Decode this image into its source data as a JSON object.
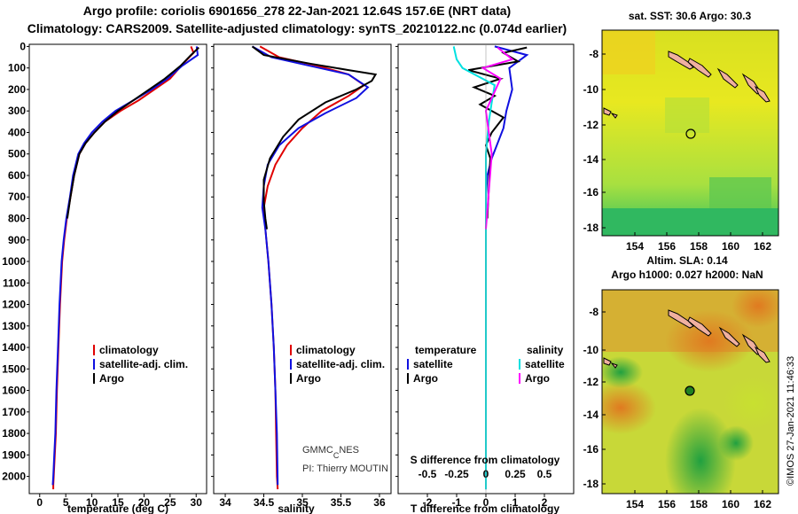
{
  "title": {
    "line1": "Argo profile: coriolis 6901656_278 22-Jan-2021 12.64S 157.6E (NRT data)",
    "line2": "Climatology: CARS2009. Satellite-adjusted climatology: synTS_20210122.nc (0.074d earlier)"
  },
  "colors": {
    "climatology": "#e00000",
    "satellite": "#1010e0",
    "argo": "#000000",
    "sat_diff_salinity": "#00e0e0",
    "argo_diff_salinity": "#ff00ff",
    "marker": "#208020"
  },
  "depth_ticks": [
    "0",
    "100",
    "200",
    "300",
    "400",
    "500",
    "600",
    "700",
    "800",
    "900",
    "1000",
    "1100",
    "1200",
    "1300",
    "1400",
    "1500",
    "1600",
    "1700",
    "1800",
    "1900",
    "2000"
  ],
  "chart_data": [
    {
      "type": "line",
      "id": "temperature",
      "xlabel": "temperature (deg C)",
      "ylabel": "depth",
      "xlim": [
        -2,
        32
      ],
      "ylim": [
        2080,
        -10
      ],
      "xticks": [
        "0",
        "5",
        "10",
        "15",
        "20",
        "25",
        "30"
      ],
      "xtick_values": [
        0,
        5,
        10,
        15,
        20,
        25,
        30
      ],
      "legend": [
        "climatology",
        "satellite-adj. clim.",
        "Argo"
      ],
      "series": [
        {
          "name": "climatology",
          "color": "#e00000",
          "x": [
            29.0,
            29.5,
            27.5,
            25,
            22,
            19,
            15.5,
            12.5,
            10.5,
            8.8,
            7.6,
            6.6,
            5.9,
            5.2,
            4.7,
            4.3,
            3.9,
            3.6,
            3.3,
            3.1,
            2.9,
            2.7,
            2.6,
            2.6
          ],
          "y": [
            0,
            30,
            80,
            150,
            200,
            250,
            300,
            350,
            400,
            450,
            500,
            600,
            700,
            800,
            900,
            1000,
            1200,
            1400,
            1600,
            1800,
            1900,
            2000,
            2040,
            2060
          ]
        },
        {
          "name": "satellite-adj. clim.",
          "color": "#1010e0",
          "x": [
            30.1,
            30.3,
            27.3,
            24.5,
            21.5,
            18,
            14.5,
            12,
            10,
            8.5,
            7.4,
            6.4,
            5.8,
            5.1,
            4.6,
            4.2,
            3.8,
            3.5,
            3.2,
            3.0,
            2.8,
            2.6,
            2.5
          ],
          "y": [
            0,
            40,
            90,
            150,
            200,
            250,
            300,
            350,
            400,
            450,
            500,
            600,
            700,
            800,
            900,
            1000,
            1200,
            1400,
            1600,
            1800,
            1900,
            2000,
            2040
          ]
        },
        {
          "name": "Argo",
          "color": "#000000",
          "x": [
            30.5,
            29,
            27,
            24,
            21,
            18,
            15,
            12.5,
            10.5,
            8.8,
            7.6,
            6.6,
            5.9,
            5.3
          ],
          "y": [
            5,
            40,
            90,
            150,
            200,
            250,
            300,
            350,
            400,
            450,
            500,
            600,
            700,
            800
          ]
        }
      ]
    },
    {
      "type": "line",
      "id": "salinity",
      "xlabel": "salinity",
      "ylabel": "depth",
      "xlim": [
        33.85,
        36.15
      ],
      "ylim": [
        2080,
        -10
      ],
      "xticks": [
        "34",
        "34.5",
        "35",
        "35.5",
        "36"
      ],
      "xtick_values": [
        34,
        34.5,
        35,
        35.5,
        36
      ],
      "legend": [
        "climatology",
        "satellite-adj. clim.",
        "Argo"
      ],
      "series": [
        {
          "name": "climatology",
          "color": "#e00000",
          "x": [
            34.45,
            34.7,
            35.2,
            35.6,
            35.8,
            35.6,
            35.25,
            35.0,
            34.8,
            34.65,
            34.55,
            34.5,
            34.52,
            34.56,
            34.6,
            34.63,
            34.65,
            34.66,
            34.67,
            34.68
          ],
          "y": [
            0,
            50,
            90,
            130,
            180,
            230,
            300,
            380,
            460,
            550,
            650,
            750,
            850,
            1000,
            1200,
            1400,
            1600,
            1800,
            2000,
            2060
          ]
        },
        {
          "name": "satellite-adj. clim.",
          "color": "#1010e0",
          "x": [
            34.35,
            34.6,
            35.1,
            35.6,
            35.85,
            35.7,
            35.3,
            34.95,
            34.7,
            34.55,
            34.5,
            34.48,
            34.52,
            34.56,
            34.6,
            34.63,
            34.65,
            34.67,
            34.68
          ],
          "y": [
            0,
            50,
            90,
            130,
            190,
            240,
            310,
            380,
            460,
            550,
            650,
            750,
            850,
            1000,
            1200,
            1400,
            1600,
            1800,
            2040
          ]
        },
        {
          "name": "Argo",
          "color": "#000000",
          "x": [
            34.35,
            34.5,
            35.1,
            35.6,
            35.95,
            35.9,
            35.7,
            35.3,
            34.95,
            34.75,
            34.58,
            34.5,
            34.5,
            34.52,
            34.54
          ],
          "y": [
            0,
            40,
            80,
            110,
            130,
            160,
            200,
            260,
            340,
            420,
            520,
            620,
            720,
            800,
            850
          ]
        }
      ]
    },
    {
      "type": "line",
      "id": "difference",
      "xlabel": "T difference from climatology",
      "xlabel2": "S difference from climatology",
      "ylabel": "depth",
      "xlim": [
        -3,
        3
      ],
      "ylim": [
        2080,
        -10
      ],
      "xticks": [
        "-2",
        "-1",
        "0",
        "1",
        "2"
      ],
      "xtick_values": [
        -2,
        -1,
        0,
        1,
        2
      ],
      "xticks2": [
        "-0.5",
        "-0.25",
        "0",
        "0.25",
        "0.5"
      ],
      "xtick2_values": [
        -0.5,
        -0.25,
        0,
        0.25,
        0.5
      ],
      "legend": [
        "temperature",
        "salinity",
        "satellite",
        "satellite",
        "Argo",
        "Argo"
      ],
      "series": [
        {
          "name": "T satellite",
          "color": "#1010e0",
          "x": [
            0.3,
            1.4,
            0.8,
            0.9,
            0.7,
            0.6,
            0.4,
            0.2,
            0.05,
            0.0,
            0.0
          ],
          "y": [
            0,
            40,
            100,
            200,
            300,
            380,
            450,
            520,
            600,
            700,
            2060
          ]
        },
        {
          "name": "T Argo",
          "color": "#000000",
          "x": [
            1.4,
            0.6,
            1.1,
            -0.6,
            0.5,
            -0.4,
            0.3,
            -0.2,
            0.6,
            0.2,
            0.0,
            0.15,
            0.05
          ],
          "y": [
            5,
            30,
            70,
            110,
            150,
            190,
            230,
            270,
            330,
            400,
            460,
            520,
            800
          ]
        },
        {
          "name": "S satellite",
          "color": "#00e0e0",
          "x": [
            -1.1,
            -1.0,
            -0.8,
            0.3,
            0.2,
            0.1,
            0.0,
            0.0
          ],
          "y": [
            0,
            60,
            100,
            180,
            260,
            350,
            500,
            2060
          ]
        },
        {
          "name": "S Argo",
          "color": "#ff00ff",
          "x": [
            0.4,
            0.9,
            -0.1,
            0.5,
            0.0,
            0.2,
            0.0
          ],
          "y": [
            5,
            60,
            100,
            150,
            300,
            500,
            850
          ]
        }
      ]
    }
  ],
  "maps": [
    {
      "title": "sat. SST: 30.6 Argo: 30.3",
      "yticks": [
        "-8",
        "-10",
        "-12",
        "-14",
        "-16",
        "-18"
      ],
      "xticks": [
        "154",
        "156",
        "158",
        "160",
        "162"
      ]
    },
    {
      "title1": "Altim. SLA: 0.14",
      "title2": "Argo h1000: 0.027 h2000: NaN",
      "yticks": [
        "-8",
        "-10",
        "-12",
        "-14",
        "-16",
        "-18"
      ],
      "xticks": [
        "154",
        "156",
        "158",
        "160",
        "162"
      ]
    }
  ],
  "annotations": {
    "gmmc_prefix": "GMMC",
    "gmmc_sub": "C",
    "gmmc_suffix": "NES",
    "pi": "PI: Thierry MOUTIN",
    "imos": "©IMOS 27-Jan-2021 11:46:33"
  }
}
